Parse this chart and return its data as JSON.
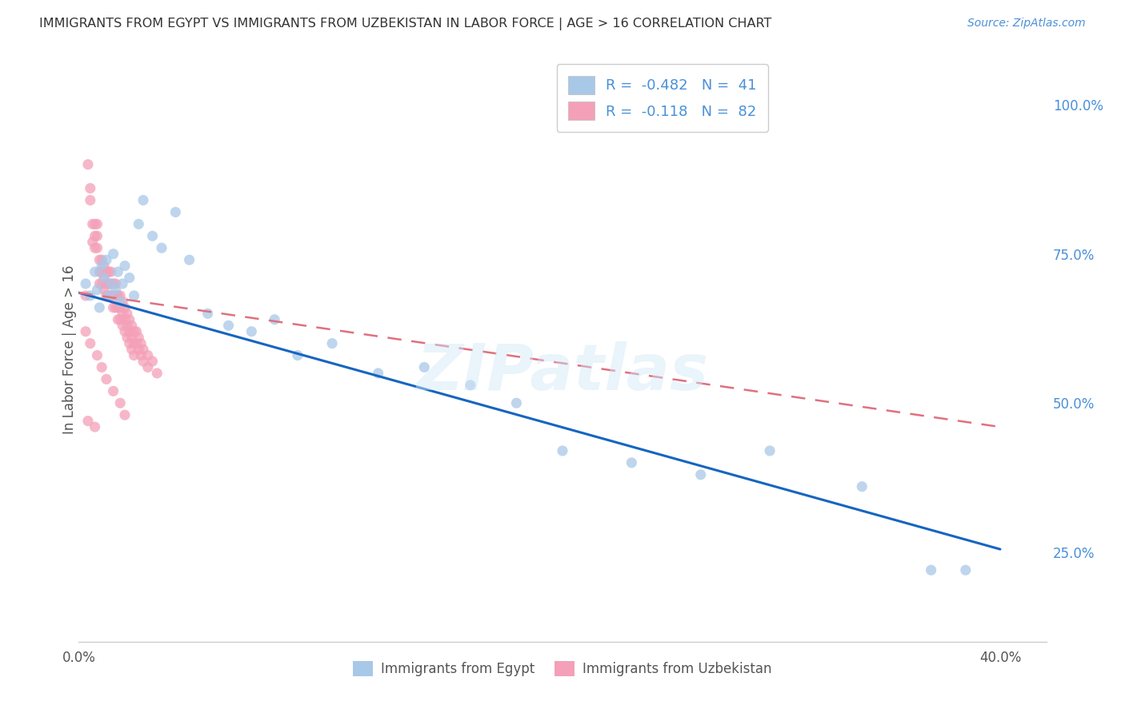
{
  "title": "IMMIGRANTS FROM EGYPT VS IMMIGRANTS FROM UZBEKISTAN IN LABOR FORCE | AGE > 16 CORRELATION CHART",
  "source": "Source: ZipAtlas.com",
  "ylabel": "In Labor Force | Age > 16",
  "xlim": [
    0.0,
    0.42
  ],
  "ylim": [
    0.1,
    1.08
  ],
  "egypt_color": "#a8c8e8",
  "uzbekistan_color": "#f4a0b8",
  "egypt_line_color": "#1565c0",
  "uzbekistan_line_color": "#e07080",
  "R_egypt": -0.482,
  "N_egypt": 41,
  "R_uzbekistan": -0.118,
  "N_uzbekistan": 82,
  "legend_label_egypt": "Immigrants from Egypt",
  "legend_label_uzbekistan": "Immigrants from Uzbekistan",
  "watermark": "ZIPatlas",
  "background_color": "#ffffff",
  "grid_color": "#cccccc",
  "title_color": "#333333",
  "right_axis_color": "#4a90d9",
  "egypt_line_x0": 0.0,
  "egypt_line_y0": 0.685,
  "egypt_line_x1": 0.4,
  "egypt_line_y1": 0.255,
  "uzbek_line_x0": 0.0,
  "uzbek_line_y0": 0.685,
  "uzbek_line_x1": 0.4,
  "uzbek_line_y1": 0.46,
  "egypt_scatter_x": [
    0.003,
    0.005,
    0.007,
    0.008,
    0.009,
    0.01,
    0.011,
    0.012,
    0.013,
    0.014,
    0.015,
    0.016,
    0.017,
    0.018,
    0.019,
    0.02,
    0.022,
    0.024,
    0.026,
    0.028,
    0.032,
    0.036,
    0.042,
    0.048,
    0.056,
    0.065,
    0.075,
    0.085,
    0.095,
    0.11,
    0.13,
    0.15,
    0.17,
    0.19,
    0.21,
    0.24,
    0.27,
    0.3,
    0.34,
    0.37,
    0.385
  ],
  "egypt_scatter_y": [
    0.7,
    0.68,
    0.72,
    0.69,
    0.66,
    0.73,
    0.71,
    0.74,
    0.68,
    0.7,
    0.75,
    0.69,
    0.72,
    0.67,
    0.7,
    0.73,
    0.71,
    0.68,
    0.8,
    0.84,
    0.78,
    0.76,
    0.82,
    0.74,
    0.65,
    0.63,
    0.62,
    0.64,
    0.58,
    0.6,
    0.55,
    0.56,
    0.53,
    0.5,
    0.42,
    0.4,
    0.38,
    0.42,
    0.36,
    0.22,
    0.22
  ],
  "uzbek_scatter_x": [
    0.003,
    0.004,
    0.005,
    0.005,
    0.006,
    0.006,
    0.007,
    0.007,
    0.007,
    0.008,
    0.008,
    0.008,
    0.009,
    0.009,
    0.009,
    0.01,
    0.01,
    0.01,
    0.011,
    0.011,
    0.011,
    0.012,
    0.012,
    0.012,
    0.013,
    0.013,
    0.013,
    0.014,
    0.014,
    0.014,
    0.015,
    0.015,
    0.015,
    0.016,
    0.016,
    0.016,
    0.017,
    0.017,
    0.017,
    0.018,
    0.018,
    0.018,
    0.019,
    0.019,
    0.019,
    0.02,
    0.02,
    0.02,
    0.021,
    0.021,
    0.021,
    0.022,
    0.022,
    0.022,
    0.023,
    0.023,
    0.023,
    0.024,
    0.024,
    0.024,
    0.025,
    0.025,
    0.026,
    0.026,
    0.027,
    0.027,
    0.028,
    0.028,
    0.03,
    0.03,
    0.032,
    0.034,
    0.003,
    0.005,
    0.008,
    0.01,
    0.012,
    0.015,
    0.018,
    0.02,
    0.004,
    0.007
  ],
  "uzbek_scatter_y": [
    0.68,
    0.9,
    0.86,
    0.84,
    0.8,
    0.77,
    0.8,
    0.78,
    0.76,
    0.8,
    0.78,
    0.76,
    0.74,
    0.72,
    0.7,
    0.74,
    0.72,
    0.7,
    0.73,
    0.71,
    0.69,
    0.72,
    0.7,
    0.68,
    0.72,
    0.7,
    0.68,
    0.72,
    0.7,
    0.68,
    0.7,
    0.68,
    0.66,
    0.7,
    0.68,
    0.66,
    0.68,
    0.66,
    0.64,
    0.68,
    0.66,
    0.64,
    0.67,
    0.65,
    0.63,
    0.66,
    0.64,
    0.62,
    0.65,
    0.63,
    0.61,
    0.64,
    0.62,
    0.6,
    0.63,
    0.61,
    0.59,
    0.62,
    0.6,
    0.58,
    0.62,
    0.6,
    0.61,
    0.59,
    0.6,
    0.58,
    0.59,
    0.57,
    0.58,
    0.56,
    0.57,
    0.55,
    0.62,
    0.6,
    0.58,
    0.56,
    0.54,
    0.52,
    0.5,
    0.48,
    0.47,
    0.46
  ]
}
